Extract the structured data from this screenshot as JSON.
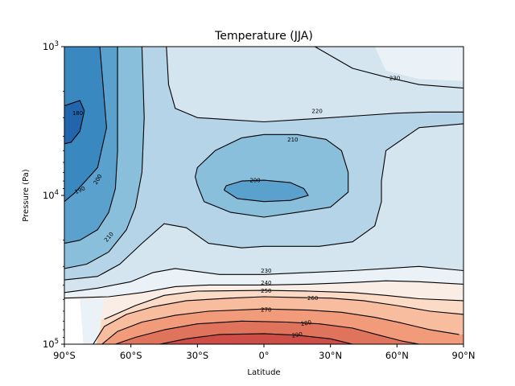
{
  "chart_data": {
    "type": "contour",
    "title": "Temperature (JJA)",
    "xlabel": "Latitude",
    "ylabel": "Pressure (Pa)",
    "xlim": [
      -90,
      90
    ],
    "ylim": [
      100000,
      1000
    ],
    "yscale": "log",
    "x_ticks": [
      {
        "value": -90,
        "label": "90°S"
      },
      {
        "value": -60,
        "label": "60°S"
      },
      {
        "value": -30,
        "label": "30°S"
      },
      {
        "value": 0,
        "label": "0°"
      },
      {
        "value": 30,
        "label": "30°N"
      },
      {
        "value": 60,
        "label": "60°N"
      },
      {
        "value": 90,
        "label": "90°N"
      }
    ],
    "y_ticks": [
      {
        "value": 1000,
        "base": "10",
        "exp": "3"
      },
      {
        "value": 10000,
        "base": "10",
        "exp": "4"
      },
      {
        "value": 100000,
        "base": "10",
        "exp": "5"
      }
    ],
    "colormap": "RdBu_r",
    "level_colors": {
      "180": "#2166ac",
      "190": "#3a88c0",
      "200": "#5aa1cd",
      "210": "#8abfdc",
      "220": "#b5d4e8",
      "230": "#d5e5f0",
      "240": "#ebf2f7",
      "250": "#f9ede6",
      "260": "#fbdac6",
      "270": "#f8bc9f",
      "280": "#f29b7a",
      "290": "#e0735c",
      "300": "#ce4d46"
    },
    "contour_levels": [
      180,
      190,
      200,
      210,
      220,
      230,
      240,
      250,
      260,
      270,
      280,
      290
    ],
    "contours": [
      {
        "level": 180,
        "label": "180",
        "points": [
          [
            -90,
            2500
          ],
          [
            -83,
            2300
          ],
          [
            -81,
            2700
          ],
          [
            -83,
            3700
          ],
          [
            -87,
            4400
          ],
          [
            -90,
            4500
          ]
        ]
      },
      {
        "level": 190,
        "label": "190",
        "points": [
          [
            -90,
            11000
          ],
          [
            -85,
            9500
          ],
          [
            -75,
            6500
          ],
          [
            -71,
            3500
          ],
          [
            -73,
            1500
          ],
          [
            -74,
            1000
          ]
        ]
      },
      {
        "level": 200,
        "label": "200",
        "points": [
          [
            -90,
            21000
          ],
          [
            -83,
            20000
          ],
          [
            -75,
            17000
          ],
          [
            -70,
            13000
          ],
          [
            -67,
            9000
          ],
          [
            -66,
            5000
          ],
          [
            -66,
            2500
          ],
          [
            -66,
            1000
          ]
        ]
      },
      {
        "level": 210,
        "label": "210",
        "points": [
          [
            -90,
            31000
          ],
          [
            -80,
            29000
          ],
          [
            -70,
            24000
          ],
          [
            -62,
            17000
          ],
          [
            -58,
            12000
          ],
          [
            -55,
            7000
          ],
          [
            -54,
            3000
          ],
          [
            -55,
            1000
          ]
        ]
      },
      {
        "level": 210,
        "label": "210",
        "points": [
          [
            -30,
            8500
          ],
          [
            -27,
            11000
          ],
          [
            -15,
            13000
          ],
          [
            0,
            14000
          ],
          [
            15,
            13000
          ],
          [
            30,
            12000
          ],
          [
            38,
            9500
          ],
          [
            38,
            7000
          ],
          [
            35,
            5000
          ],
          [
            28,
            4200
          ],
          [
            15,
            3900
          ],
          [
            0,
            3900
          ],
          [
            -10,
            4100
          ],
          [
            -22,
            5000
          ],
          [
            -30,
            6500
          ],
          [
            -31,
            7500
          ],
          [
            -30,
            8500
          ]
        ]
      },
      {
        "level": 200,
        "label": "200",
        "points": [
          [
            -18,
            9200
          ],
          [
            -12,
            10500
          ],
          [
            0,
            11000
          ],
          [
            12,
            10800
          ],
          [
            20,
            10000
          ],
          [
            18,
            9000
          ],
          [
            12,
            8200
          ],
          [
            0,
            7900
          ],
          [
            -10,
            8000
          ],
          [
            -17,
            8600
          ],
          [
            -18,
            9200
          ]
        ]
      },
      {
        "level": 220,
        "label": "220",
        "points": [
          [
            -90,
            37000
          ],
          [
            -75,
            35000
          ],
          [
            -65,
            29000
          ],
          [
            -55,
            21000
          ],
          [
            -45,
            15500
          ],
          [
            -35,
            16500
          ],
          [
            -25,
            21000
          ],
          [
            -10,
            22500
          ],
          [
            0,
            22000
          ],
          [
            10,
            22000
          ],
          [
            25,
            22000
          ],
          [
            40,
            20500
          ],
          [
            50,
            16000
          ],
          [
            53,
            11000
          ],
          [
            53,
            8000
          ],
          [
            55,
            5000
          ],
          [
            70,
            3500
          ],
          [
            90,
            3300
          ]
        ]
      },
      {
        "level": 220,
        "label": "220",
        "points": [
          [
            -44,
            1000
          ],
          [
            -43,
            1800
          ],
          [
            -40,
            2600
          ],
          [
            -30,
            3000
          ],
          [
            -15,
            3100
          ],
          [
            0,
            3200
          ],
          [
            15,
            3100
          ],
          [
            30,
            3000
          ],
          [
            45,
            2900
          ],
          [
            60,
            2800
          ],
          [
            75,
            2750
          ],
          [
            90,
            2750
          ]
        ]
      },
      {
        "level": 230,
        "label": "230",
        "points": [
          [
            -90,
            45000
          ],
          [
            -75,
            42000
          ],
          [
            -60,
            38000
          ],
          [
            -50,
            33000
          ],
          [
            -40,
            31000
          ],
          [
            -20,
            34000
          ],
          [
            0,
            34000
          ],
          [
            20,
            33000
          ],
          [
            40,
            32000
          ],
          [
            55,
            31000
          ],
          [
            70,
            30000
          ],
          [
            90,
            32000
          ]
        ]
      },
      {
        "level": 230,
        "label": "230",
        "points": [
          [
            23,
            1000
          ],
          [
            40,
            1400
          ],
          [
            55,
            1600
          ],
          [
            70,
            1800
          ],
          [
            90,
            1900
          ]
        ]
      },
      {
        "level": 240,
        "label": "240",
        "points": [
          [
            -90,
            49000
          ],
          [
            -70,
            48000
          ],
          [
            -55,
            45000
          ],
          [
            -40,
            41000
          ],
          [
            -25,
            40000
          ],
          [
            0,
            40000
          ],
          [
            20,
            39500
          ],
          [
            40,
            38500
          ],
          [
            55,
            37500
          ],
          [
            70,
            38000
          ],
          [
            90,
            39500
          ]
        ]
      },
      {
        "level": 250,
        "label": "250",
        "points": [
          [
            -72,
            68000
          ],
          [
            -58,
            55000
          ],
          [
            -45,
            47000
          ],
          [
            -30,
            44000
          ],
          [
            0,
            43500
          ],
          [
            20,
            44000
          ],
          [
            40,
            45000
          ],
          [
            55,
            47000
          ],
          [
            70,
            49500
          ],
          [
            90,
            51000
          ]
        ]
      },
      {
        "level": 260,
        "label": "260",
        "points": [
          [
            -77,
            100000
          ],
          [
            -72,
            76000
          ],
          [
            -62,
            63000
          ],
          [
            -50,
            56000
          ],
          [
            -35,
            51000
          ],
          [
            -15,
            49000
          ],
          [
            0,
            48000
          ],
          [
            15,
            48500
          ],
          [
            30,
            49000
          ],
          [
            45,
            51000
          ],
          [
            60,
            55000
          ],
          [
            75,
            60000
          ],
          [
            90,
            63000
          ]
        ]
      },
      {
        "level": 270,
        "label": "270",
        "points": [
          [
            -73,
            100000
          ],
          [
            -66,
            82000
          ],
          [
            -55,
            71000
          ],
          [
            -40,
            64000
          ],
          [
            -25,
            60000
          ],
          [
            0,
            58000
          ],
          [
            20,
            59000
          ],
          [
            35,
            61000
          ],
          [
            50,
            66000
          ],
          [
            62,
            72000
          ],
          [
            75,
            80000
          ],
          [
            88,
            86000
          ]
        ]
      },
      {
        "level": 280,
        "label": "280",
        "points": [
          [
            -67,
            100000
          ],
          [
            -58,
            90000
          ],
          [
            -45,
            80000
          ],
          [
            -30,
            73000
          ],
          [
            -10,
            70000
          ],
          [
            10,
            71000
          ],
          [
            25,
            73000
          ],
          [
            40,
            78000
          ],
          [
            52,
            87000
          ],
          [
            62,
            95000
          ],
          [
            70,
            100000
          ]
        ]
      },
      {
        "level": 290,
        "label": "290",
        "points": [
          [
            -47,
            100000
          ],
          [
            -35,
            92000
          ],
          [
            -20,
            86000
          ],
          [
            0,
            85000
          ],
          [
            15,
            87000
          ],
          [
            30,
            92000
          ],
          [
            40,
            100000
          ]
        ]
      }
    ],
    "contour_labels": [
      {
        "text": "180",
        "lat": -84,
        "p": 2800,
        "angle": 0
      },
      {
        "text": "190",
        "lat": -83,
        "p": 9200,
        "angle": -25
      },
      {
        "text": "200",
        "lat": -75,
        "p": 7800,
        "angle": -60
      },
      {
        "text": "210",
        "lat": -70,
        "p": 19000,
        "angle": -50
      },
      {
        "text": "200",
        "lat": -4,
        "p": 7900,
        "angle": 0
      },
      {
        "text": "210",
        "lat": 13,
        "p": 4200,
        "angle": 0
      },
      {
        "text": "220",
        "lat": 24,
        "p": 2700,
        "angle": 0
      },
      {
        "text": "230",
        "lat": 59,
        "p": 1620,
        "angle": 0
      },
      {
        "text": "230",
        "lat": 1,
        "p": 32000,
        "angle": 0
      },
      {
        "text": "240",
        "lat": 1,
        "p": 38500,
        "angle": 0
      },
      {
        "text": "250",
        "lat": 1,
        "p": 43800,
        "angle": 0
      },
      {
        "text": "260",
        "lat": 22,
        "p": 49000,
        "angle": 0
      },
      {
        "text": "270",
        "lat": 1,
        "p": 58500,
        "angle": 0
      },
      {
        "text": "280",
        "lat": 19,
        "p": 72000,
        "angle": -10
      },
      {
        "text": "290",
        "lat": 15,
        "p": 86500,
        "angle": -10
      }
    ],
    "masked_region": {
      "lat_max": -80,
      "p_min": 50000,
      "note": "no data (below surface)"
    },
    "grid": false,
    "legend": "none"
  }
}
